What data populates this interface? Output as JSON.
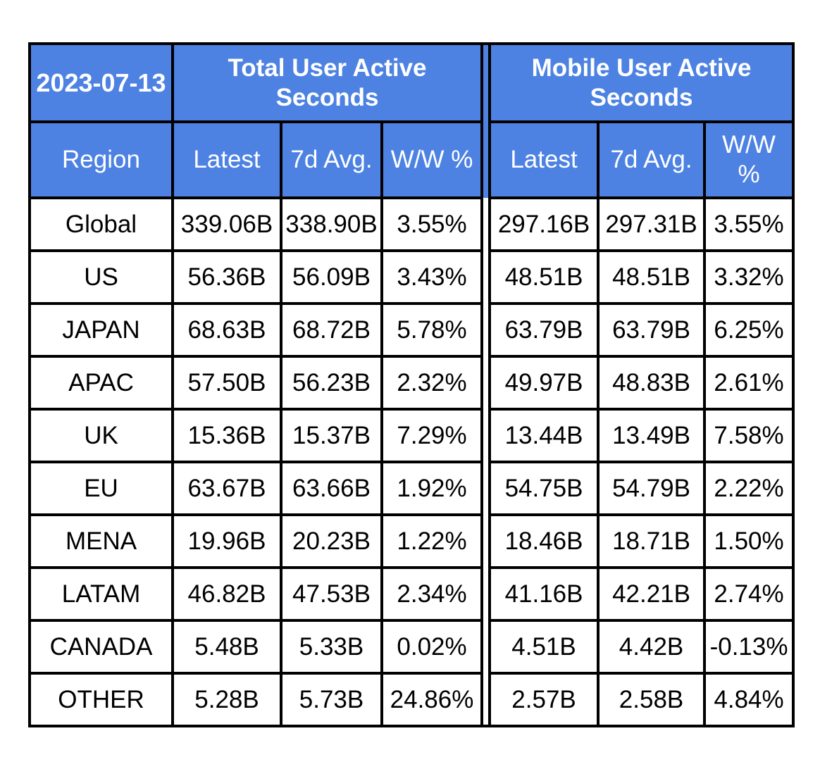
{
  "table": {
    "date": "2023-07-13",
    "section_titles": [
      "Total User Active Seconds",
      "Mobile User Active Seconds"
    ],
    "region_header": "Region",
    "sub_headers": [
      "Latest",
      "7d Avg.",
      "W/W %"
    ],
    "rows": [
      {
        "region": "Global",
        "values": [
          "339.06B",
          "338.90B",
          "3.55%",
          "297.16B",
          "297.31B",
          "3.55%"
        ]
      },
      {
        "region": "US",
        "values": [
          "56.36B",
          "56.09B",
          "3.43%",
          "48.51B",
          "48.51B",
          "3.32%"
        ]
      },
      {
        "region": "JAPAN",
        "values": [
          "68.63B",
          "68.72B",
          "5.78%",
          "63.79B",
          "63.79B",
          "6.25%"
        ]
      },
      {
        "region": "APAC",
        "values": [
          "57.50B",
          "56.23B",
          "2.32%",
          "49.97B",
          "48.83B",
          "2.61%"
        ]
      },
      {
        "region": "UK",
        "values": [
          "15.36B",
          "15.37B",
          "7.29%",
          "13.44B",
          "13.49B",
          "7.58%"
        ]
      },
      {
        "region": "EU",
        "values": [
          "63.67B",
          "63.66B",
          "1.92%",
          "54.75B",
          "54.79B",
          "2.22%"
        ]
      },
      {
        "region": "MENA",
        "values": [
          "19.96B",
          "20.23B",
          "1.22%",
          "18.46B",
          "18.71B",
          "1.50%"
        ]
      },
      {
        "region": "LATAM",
        "values": [
          "46.82B",
          "47.53B",
          "2.34%",
          "41.16B",
          "42.21B",
          "2.74%"
        ]
      },
      {
        "region": "CANADA",
        "values": [
          "5.48B",
          "5.33B",
          "0.02%",
          "4.51B",
          "4.42B",
          "-0.13%"
        ]
      },
      {
        "region": "OTHER",
        "values": [
          "5.28B",
          "5.73B",
          "24.86%",
          "2.57B",
          "2.58B",
          "4.84%"
        ]
      }
    ],
    "colors": {
      "header_bg": "#4d82e3",
      "header_text": "#ffffff",
      "border": "#000000",
      "cell_text": "#000000",
      "background": "#ffffff"
    }
  },
  "chart_data": {
    "type": "table",
    "title": "2023-07-13",
    "column_groups": [
      "Total User Active Seconds",
      "Mobile User Active Seconds"
    ],
    "columns": [
      "Region",
      "Total Latest",
      "Total 7d Avg.",
      "Total W/W %",
      "Mobile Latest",
      "Mobile 7d Avg.",
      "Mobile W/W %"
    ],
    "rows": [
      [
        "Global",
        "339.06B",
        "338.90B",
        "3.55%",
        "297.16B",
        "297.31B",
        "3.55%"
      ],
      [
        "US",
        "56.36B",
        "56.09B",
        "3.43%",
        "48.51B",
        "48.51B",
        "3.32%"
      ],
      [
        "JAPAN",
        "68.63B",
        "68.72B",
        "5.78%",
        "63.79B",
        "63.79B",
        "6.25%"
      ],
      [
        "APAC",
        "57.50B",
        "56.23B",
        "2.32%",
        "49.97B",
        "48.83B",
        "2.61%"
      ],
      [
        "UK",
        "15.36B",
        "15.37B",
        "7.29%",
        "13.44B",
        "13.49B",
        "7.58%"
      ],
      [
        "EU",
        "63.67B",
        "63.66B",
        "1.92%",
        "54.75B",
        "54.79B",
        "2.22%"
      ],
      [
        "MENA",
        "19.96B",
        "20.23B",
        "1.22%",
        "18.46B",
        "18.71B",
        "1.50%"
      ],
      [
        "LATAM",
        "46.82B",
        "47.53B",
        "2.34%",
        "41.16B",
        "42.21B",
        "2.74%"
      ],
      [
        "CANADA",
        "5.48B",
        "5.33B",
        "0.02%",
        "4.51B",
        "4.42B",
        "-0.13%"
      ],
      [
        "OTHER",
        "5.28B",
        "5.73B",
        "24.86%",
        "2.57B",
        "2.58B",
        "4.84%"
      ]
    ]
  }
}
